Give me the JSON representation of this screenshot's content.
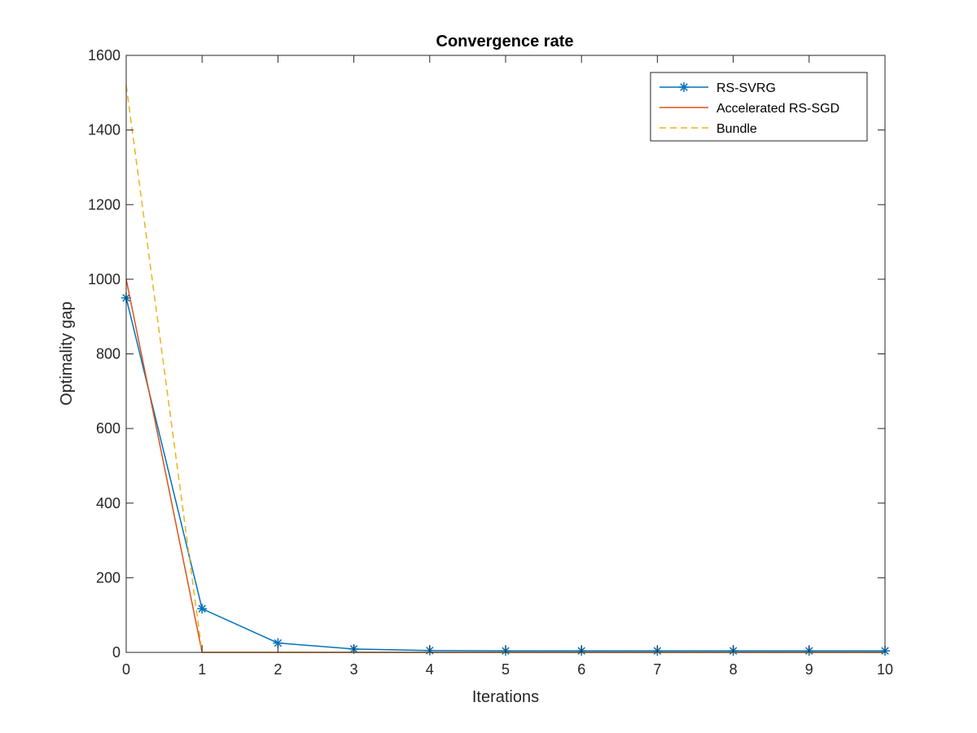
{
  "chart_data": {
    "type": "line",
    "title": "Convergence rate",
    "xlabel": "Iterations",
    "ylabel": "Optimality gap",
    "xlim": [
      0,
      10
    ],
    "ylim": [
      0,
      1600
    ],
    "xticks": [
      0,
      1,
      2,
      3,
      4,
      5,
      6,
      7,
      8,
      9,
      10
    ],
    "yticks": [
      0,
      200,
      400,
      600,
      800,
      1000,
      1200,
      1400,
      1600
    ],
    "grid": false,
    "legend_position": "top-right",
    "series": [
      {
        "name": "RS-SVRG",
        "color": "#0072BD",
        "line_style": "solid",
        "marker": "asterisk",
        "x": [
          0,
          1,
          2,
          3,
          4,
          5,
          6,
          7,
          8,
          9,
          10
        ],
        "y": [
          950,
          117,
          25,
          9,
          5,
          4,
          4,
          4,
          4,
          4,
          4
        ]
      },
      {
        "name": "Accelerated RS-SGD",
        "color": "#D95319",
        "line_style": "solid",
        "marker": "none",
        "x": [
          0,
          1,
          2,
          3,
          4,
          5,
          6,
          7,
          8,
          9,
          10
        ],
        "y": [
          1000,
          0,
          0,
          0,
          0,
          0,
          0,
          0,
          0,
          0,
          0
        ]
      },
      {
        "name": "Bundle",
        "color": "#EDB120",
        "line_style": "dashed",
        "marker": "none",
        "x": [
          0,
          1,
          2,
          3,
          4,
          5,
          6,
          7,
          8,
          9,
          10
        ],
        "y": [
          1520,
          0,
          0,
          0,
          0,
          0,
          0,
          0,
          0,
          0,
          0
        ]
      }
    ]
  }
}
